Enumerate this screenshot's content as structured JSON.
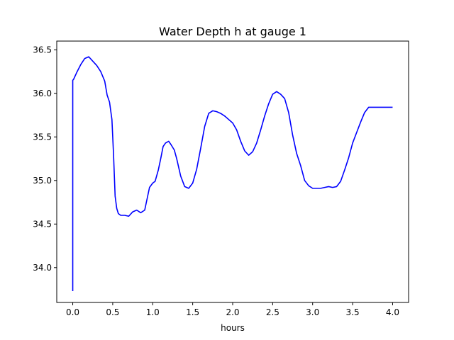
{
  "chart_data": {
    "type": "line",
    "title": "Water Depth h at gauge 1",
    "xlabel": "hours",
    "ylabel": "",
    "xlim": [
      -0.2,
      4.2
    ],
    "ylim": [
      33.6,
      36.6
    ],
    "xticks": [
      {
        "value": 0.0,
        "label": "0.0"
      },
      {
        "value": 0.5,
        "label": "0.5"
      },
      {
        "value": 1.0,
        "label": "1.0"
      },
      {
        "value": 1.5,
        "label": "1.5"
      },
      {
        "value": 2.0,
        "label": "2.0"
      },
      {
        "value": 2.5,
        "label": "2.5"
      },
      {
        "value": 3.0,
        "label": "3.0"
      },
      {
        "value": 3.5,
        "label": "3.5"
      },
      {
        "value": 4.0,
        "label": "4.0"
      }
    ],
    "yticks": [
      {
        "value": 34.0,
        "label": "34.0"
      },
      {
        "value": 34.5,
        "label": "34.5"
      },
      {
        "value": 35.0,
        "label": "35.0"
      },
      {
        "value": 35.5,
        "label": "35.5"
      },
      {
        "value": 36.0,
        "label": "36.0"
      },
      {
        "value": 36.5,
        "label": "36.5"
      }
    ],
    "grid": false,
    "series": [
      {
        "color": "#0000ff",
        "x": [
          0.0,
          0.0,
          0.01,
          0.05,
          0.1,
          0.15,
          0.2,
          0.25,
          0.3,
          0.35,
          0.4,
          0.43,
          0.46,
          0.49,
          0.51,
          0.53,
          0.55,
          0.57,
          0.6,
          0.65,
          0.7,
          0.75,
          0.8,
          0.85,
          0.9,
          0.93,
          0.96,
          1.0,
          1.03,
          1.07,
          1.1,
          1.13,
          1.16,
          1.2,
          1.23,
          1.27,
          1.3,
          1.35,
          1.4,
          1.45,
          1.5,
          1.55,
          1.6,
          1.65,
          1.7,
          1.75,
          1.8,
          1.85,
          1.9,
          1.95,
          2.0,
          2.05,
          2.1,
          2.15,
          2.2,
          2.25,
          2.3,
          2.35,
          2.4,
          2.45,
          2.5,
          2.55,
          2.6,
          2.65,
          2.7,
          2.75,
          2.8,
          2.85,
          2.9,
          2.95,
          3.0,
          3.05,
          3.1,
          3.15,
          3.2,
          3.25,
          3.3,
          3.35,
          3.4,
          3.45,
          3.5,
          3.55,
          3.6,
          3.65,
          3.7,
          3.75,
          3.8,
          3.85,
          3.9,
          3.95,
          4.0
        ],
        "y": [
          33.73,
          36.15,
          36.16,
          36.24,
          36.33,
          36.4,
          36.42,
          36.37,
          36.32,
          36.25,
          36.14,
          35.98,
          35.9,
          35.7,
          35.3,
          34.82,
          34.68,
          34.62,
          34.6,
          34.6,
          34.59,
          34.64,
          34.66,
          34.63,
          34.66,
          34.79,
          34.92,
          34.97,
          34.99,
          35.12,
          35.25,
          35.39,
          35.43,
          35.45,
          35.41,
          35.35,
          35.25,
          35.05,
          34.93,
          34.91,
          34.97,
          35.13,
          35.37,
          35.62,
          35.77,
          35.8,
          35.79,
          35.77,
          35.74,
          35.7,
          35.66,
          35.58,
          35.45,
          35.34,
          35.29,
          35.33,
          35.43,
          35.58,
          35.74,
          35.88,
          35.99,
          36.02,
          35.99,
          35.94,
          35.78,
          35.52,
          35.31,
          35.17,
          35.0,
          34.94,
          34.91,
          34.91,
          34.91,
          34.92,
          34.93,
          34.92,
          34.93,
          34.99,
          35.12,
          35.26,
          35.43,
          35.55,
          35.67,
          35.78,
          35.84,
          35.84,
          35.84,
          35.84,
          35.84,
          35.84,
          35.84
        ]
      }
    ]
  }
}
